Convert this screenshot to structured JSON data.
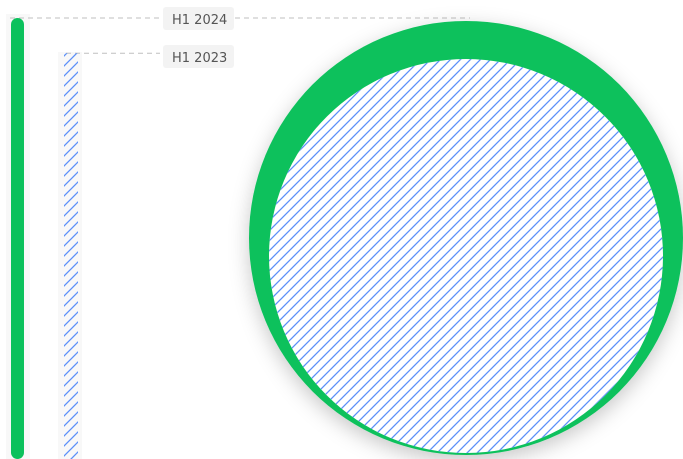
{
  "chart_data": {
    "type": "bar",
    "series": [
      {
        "name": "H1 2024",
        "color": "#0bc15c",
        "style": "solid"
      },
      {
        "name": "H1 2023",
        "color": "#5b8ff9",
        "style": "hatched"
      }
    ],
    "values": {
      "H1 2024": 100,
      "H1 2023": 92
    },
    "ymax": 100,
    "grid": false,
    "legend": "top-left"
  }
}
